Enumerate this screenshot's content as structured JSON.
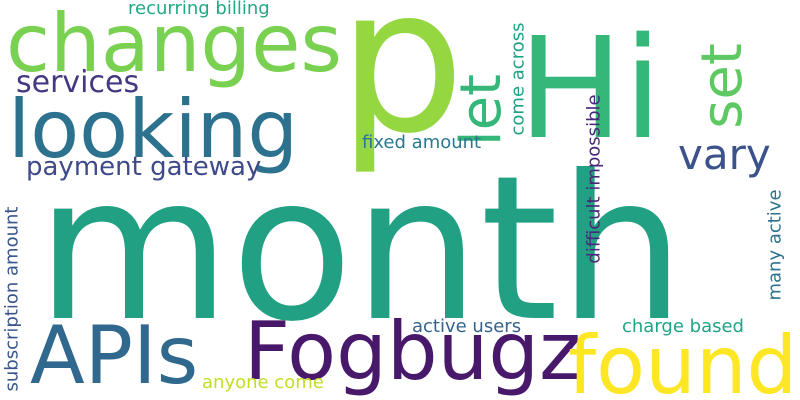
{
  "words": [
    {
      "text": "month",
      "color": "#21a083"
    },
    {
      "text": "p",
      "color": "#94d740"
    },
    {
      "text": "Hi",
      "color": "#35b779"
    },
    {
      "text": "changes",
      "color": "#7ad151"
    },
    {
      "text": "looking",
      "color": "#2c728e"
    },
    {
      "text": "Fogbugz",
      "color": "#48186a"
    },
    {
      "text": "found",
      "color": "#fde725"
    },
    {
      "text": "APIs",
      "color": "#31688e"
    },
    {
      "text": "let",
      "color": "#35b779"
    },
    {
      "text": "set",
      "color": "#5ec962"
    },
    {
      "text": "vary",
      "color": "#3b528b"
    },
    {
      "text": "services",
      "color": "#453781"
    },
    {
      "text": "payment gateway",
      "color": "#3e4a89"
    },
    {
      "text": "recurring billing",
      "color": "#22a884"
    },
    {
      "text": "fixed amount",
      "color": "#2a788e"
    },
    {
      "text": "come across",
      "color": "#1fa188"
    },
    {
      "text": "difficult impossible",
      "color": "#482878"
    },
    {
      "text": "subscription amount",
      "color": "#39558c"
    },
    {
      "text": "many active",
      "color": "#2c728e"
    },
    {
      "text": "active users",
      "color": "#33638d"
    },
    {
      "text": "charge based",
      "color": "#20a386"
    },
    {
      "text": "anyone come",
      "color": "#c2df23"
    }
  ]
}
